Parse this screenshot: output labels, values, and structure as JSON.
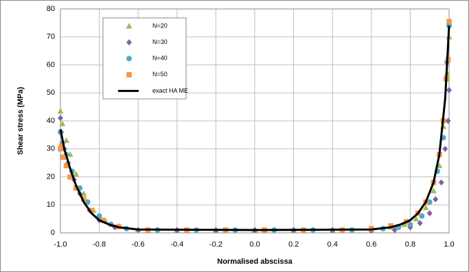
{
  "chart_data": {
    "type": "scatter",
    "xlabel": "Normalised abscissa",
    "ylabel": "Shear stress (MPa)",
    "xlim": [
      -1,
      1
    ],
    "ylim": [
      0,
      80
    ],
    "xticks": [
      {
        "value": -1,
        "label": "-1.0"
      },
      -0.8,
      -0.6,
      -0.4,
      -0.2,
      {
        "value": 0,
        "label": "0.0"
      },
      0.2,
      0.4,
      0.6,
      0.8,
      {
        "value": 1,
        "label": "1.0"
      }
    ],
    "yticks": [
      0,
      10,
      20,
      30,
      40,
      50,
      60,
      70,
      80
    ],
    "grid": true,
    "legend": "upper left",
    "series": [
      {
        "name": "N=20",
        "color": "#9bbb59",
        "marker": "triangle",
        "x": [
          -1,
          -0.99,
          -0.97,
          -0.95,
          -0.92,
          -0.88,
          -0.83,
          -0.77,
          -0.7,
          -0.6,
          -0.4,
          -0.2,
          0,
          0.2,
          0.4,
          0.6,
          0.7,
          0.77,
          0.83,
          0.88,
          0.92,
          0.95,
          0.97,
          0.99,
          1
        ],
        "values": [
          43.5,
          39,
          33,
          28,
          21,
          14,
          8,
          4.5,
          2.5,
          1.2,
          1,
          1,
          1,
          1,
          1,
          1.2,
          2,
          3,
          5,
          9,
          15,
          24,
          38,
          57,
          70
        ]
      },
      {
        "name": "N=30",
        "color": "#7f5fa8",
        "marker": "diamond",
        "x": [
          -1,
          -0.995,
          -0.98,
          -0.96,
          -0.93,
          -0.9,
          -0.85,
          -0.8,
          -0.72,
          -0.6,
          -0.4,
          -0.2,
          0,
          0.2,
          0.4,
          0.6,
          0.72,
          0.8,
          0.85,
          0.9,
          0.93,
          0.96,
          0.98,
          0.995,
          1
        ],
        "values": [
          41,
          36,
          30,
          25,
          19,
          14,
          8,
          4.5,
          2,
          1,
          1,
          1,
          1,
          1,
          1,
          0.8,
          1,
          2,
          3.5,
          7,
          12,
          18,
          30,
          40,
          51
        ]
      },
      {
        "name": "N=40",
        "color": "#4bacc6",
        "marker": "circle",
        "x": [
          -1,
          -0.99,
          -0.97,
          -0.94,
          -0.9,
          -0.86,
          -0.8,
          -0.74,
          -0.66,
          -0.5,
          -0.3,
          -0.1,
          0.1,
          0.3,
          0.5,
          0.66,
          0.74,
          0.8,
          0.86,
          0.9,
          0.94,
          0.97,
          0.99,
          1
        ],
        "values": [
          36,
          32,
          28,
          22,
          16,
          11,
          6,
          3,
          1.5,
          1,
          1,
          1,
          1,
          1,
          1,
          1.5,
          2,
          3,
          6,
          11,
          22,
          34,
          61,
          74
        ]
      },
      {
        "name": "N=50",
        "color": "#f79646",
        "marker": "square",
        "x": [
          -1,
          -0.995,
          -0.985,
          -0.97,
          -0.95,
          -0.92,
          -0.88,
          -0.84,
          -0.78,
          -0.7,
          -0.55,
          -0.35,
          -0.15,
          0.05,
          0.25,
          0.45,
          0.6,
          0.7,
          0.78,
          0.84,
          0.88,
          0.92,
          0.95,
          0.97,
          0.985,
          0.995,
          1
        ],
        "values": [
          30,
          31,
          27,
          24,
          20,
          16,
          12,
          8,
          4.5,
          2.2,
          1,
          1,
          1,
          1,
          1,
          1,
          1.5,
          2.5,
          4,
          7,
          11,
          18,
          28,
          40,
          55,
          62,
          75.5
        ]
      },
      {
        "name": "exact HA ME",
        "color": "#000000",
        "marker": "line",
        "x": [
          -1,
          -0.98,
          -0.95,
          -0.92,
          -0.88,
          -0.84,
          -0.8,
          -0.75,
          -0.7,
          -0.6,
          0,
          0.6,
          0.7,
          0.75,
          0.8,
          0.84,
          0.88,
          0.92,
          0.95,
          0.98,
          1
        ],
        "values": [
          37,
          30,
          23,
          17,
          11,
          7,
          4.5,
          3,
          2,
          1.2,
          1,
          1.2,
          2,
          3,
          4.5,
          7,
          11,
          18,
          28,
          48,
          74
        ]
      }
    ]
  }
}
